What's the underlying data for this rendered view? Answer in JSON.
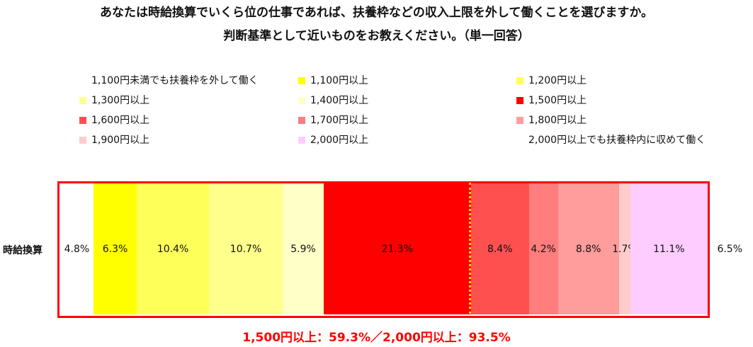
{
  "title_line1": "あなたは時給換算でいくら位の仕事であれば、扶養枠などの収入上限を外して働くことを選びますか。",
  "title_line2": "判断基準として近いものをお教えください。（単一回答）",
  "row_label": "時給換算",
  "summary": "1,500円以上：59.3%／2,000円以上：93.5%",
  "chart_data": {
    "type": "bar",
    "orientation": "horizontal-stacked-100",
    "categories": [
      "時給換算"
    ],
    "series": [
      {
        "name": "1,100円未満でも扶養枠を外して働く",
        "values": [
          4.8
        ],
        "label": "4.8%",
        "color": "#ffffff"
      },
      {
        "name": "1,100円以上",
        "values": [
          6.3
        ],
        "label": "6.3%",
        "color": "#ffff00"
      },
      {
        "name": "1,200円以上",
        "values": [
          10.4
        ],
        "label": "10.4%",
        "color": "#ffff5a"
      },
      {
        "name": "1,300円以上",
        "values": [
          10.7
        ],
        "label": "10.7%",
        "color": "#ffff8c"
      },
      {
        "name": "1,400円以上",
        "values": [
          5.9
        ],
        "label": "5.9%",
        "color": "#ffffc8"
      },
      {
        "name": "1,500円以上",
        "values": [
          21.3
        ],
        "label": "21.3%",
        "color": "#ff0000"
      },
      {
        "name": "1,600円以上",
        "values": [
          8.4
        ],
        "label": "8.4%",
        "color": "#ff5050"
      },
      {
        "name": "1,700円以上",
        "values": [
          4.2
        ],
        "label": "4.2%",
        "color": "#ff7d7d"
      },
      {
        "name": "1,800円以上",
        "values": [
          8.8
        ],
        "label": "8.8%",
        "color": "#ff9c9c"
      },
      {
        "name": "1,900円以上",
        "values": [
          1.7
        ],
        "label": "1.7%",
        "color": "#ffcccc"
      },
      {
        "name": "2,000円以上",
        "values": [
          11.1
        ],
        "label": "11.1%",
        "color": "#ffccff"
      },
      {
        "name": "2,000円以上でも扶養枠内に収めて働く",
        "values": [
          6.5
        ],
        "label": "6.5%",
        "color": "#ffffff"
      }
    ],
    "xlim": [
      0,
      100
    ],
    "legend_position": "top"
  }
}
